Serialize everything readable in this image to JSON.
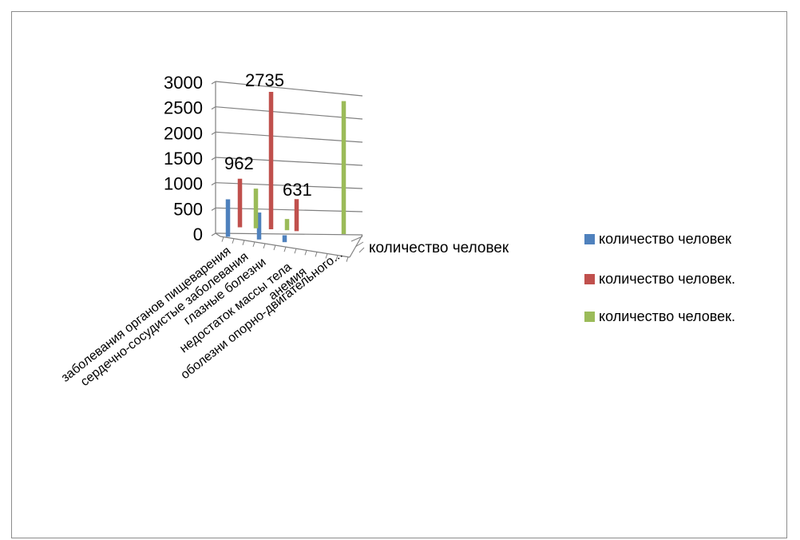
{
  "chart_data": {
    "type": "bar",
    "view": "3d-column",
    "categories": [
      "заболевания органов пищеварения",
      "сердечно-сосудистые заболевания",
      "глазные болезни",
      "недостаток массы тела",
      "анемия",
      "оболезни опорно-двигательного..."
    ],
    "depth_axis_label": "количество человек",
    "ylim": [
      0,
      3000
    ],
    "yticks": [
      0,
      500,
      1000,
      1500,
      2000,
      2500,
      3000
    ],
    "grid": true,
    "legend_position": "right",
    "series": [
      {
        "name": "количество человек",
        "color": "#4f81bd",
        "values": [
          740,
          530,
          130,
          0,
          0,
          0
        ]
      },
      {
        "name": "количество человек.",
        "color": "#c0504d",
        "values": [
          962,
          2735,
          631,
          null,
          null,
          null
        ]
      },
      {
        "name": "количество человек.",
        "color": "#9bbb59",
        "values": [
          800,
          220,
          0,
          2700,
          null,
          null
        ]
      }
    ],
    "data_labels": [
      {
        "series": 1,
        "index": 0,
        "value": "962"
      },
      {
        "series": 1,
        "index": 1,
        "value": "2735"
      },
      {
        "series": 1,
        "index": 2,
        "value": "631"
      }
    ]
  }
}
